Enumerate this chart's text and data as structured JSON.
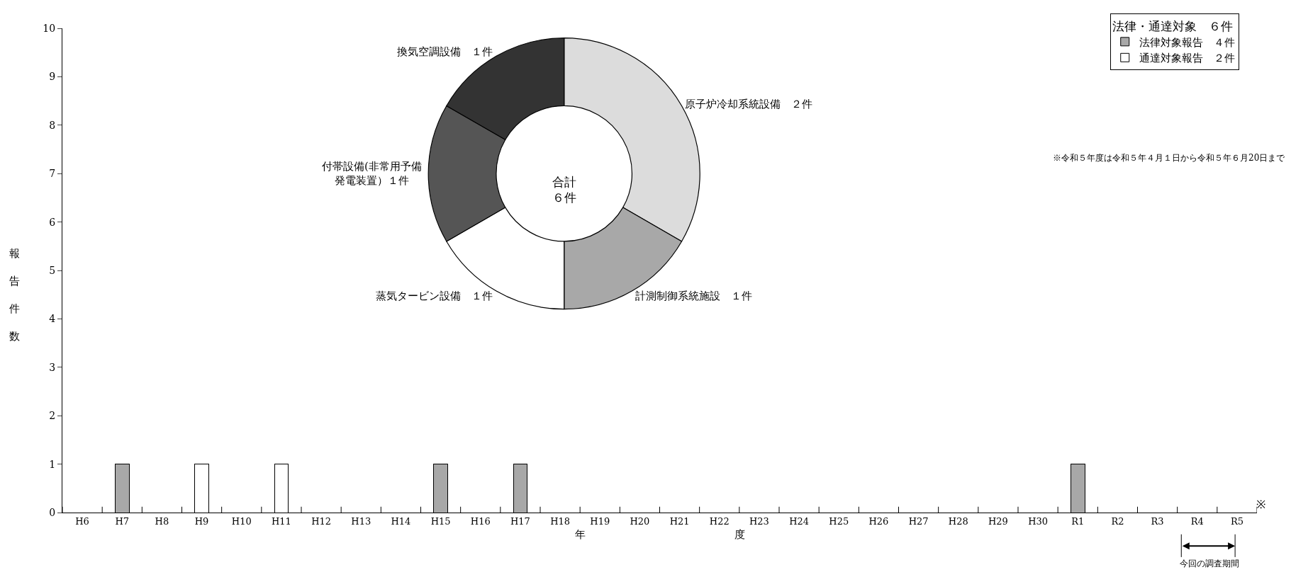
{
  "chart_data": [
    {
      "type": "bar",
      "stacked": true,
      "xlabel": "年　　　　　　　　　　　　　　度",
      "ylabel": "報告件数",
      "legend_title": "法律・通達対象　６件",
      "legend": "top right",
      "categories": [
        "H6",
        "H7",
        "H8",
        "H9",
        "H10",
        "H11",
        "H12",
        "H13",
        "H14",
        "H15",
        "H16",
        "H17",
        "H18",
        "H19",
        "H20",
        "H21",
        "H22",
        "H23",
        "H24",
        "H25",
        "H26",
        "H27",
        "H28",
        "H29",
        "H30",
        "R1",
        "R2",
        "R3",
        "R4",
        "R5"
      ],
      "series": [
        {
          "name": "法律対象報告　４件",
          "color": "#a8a8a8",
          "values": [
            0,
            1,
            0,
            0,
            0,
            0,
            0,
            0,
            0,
            1,
            0,
            1,
            0,
            0,
            0,
            0,
            0,
            0,
            0,
            0,
            0,
            0,
            0,
            0,
            0,
            1,
            0,
            0,
            0,
            0
          ]
        },
        {
          "name": "通達対象報告　２件",
          "color": "#ffffff",
          "values": [
            0,
            0,
            0,
            1,
            0,
            1,
            0,
            0,
            0,
            0,
            0,
            0,
            0,
            0,
            0,
            0,
            0,
            0,
            0,
            0,
            0,
            0,
            0,
            0,
            0,
            0,
            0,
            0,
            0,
            0
          ]
        }
      ],
      "ylim": [
        0,
        10
      ],
      "yticks": [
        0,
        1,
        2,
        3,
        4,
        5,
        6,
        7,
        8,
        9,
        10
      ],
      "annotations": [
        "※令和５年度は令和５年４月１日から令和５年６月20日まで",
        "※",
        "今回の調査期間"
      ]
    },
    {
      "type": "donut",
      "categories": [
        "原子炉冷却系統設備　２件",
        "計測制御系統施設　１件",
        "蒸気タービン設備　１件",
        "付帯設備(非常用予備発電装置）１件",
        "換気空調設備　１件"
      ],
      "values": [
        2,
        1,
        1,
        1,
        1
      ],
      "colors": [
        "#dcdcdc",
        "#a8a8a8",
        "#ffffff",
        "#555555",
        "#333333"
      ],
      "annotations": [
        "合計６件"
      ]
    }
  ]
}
